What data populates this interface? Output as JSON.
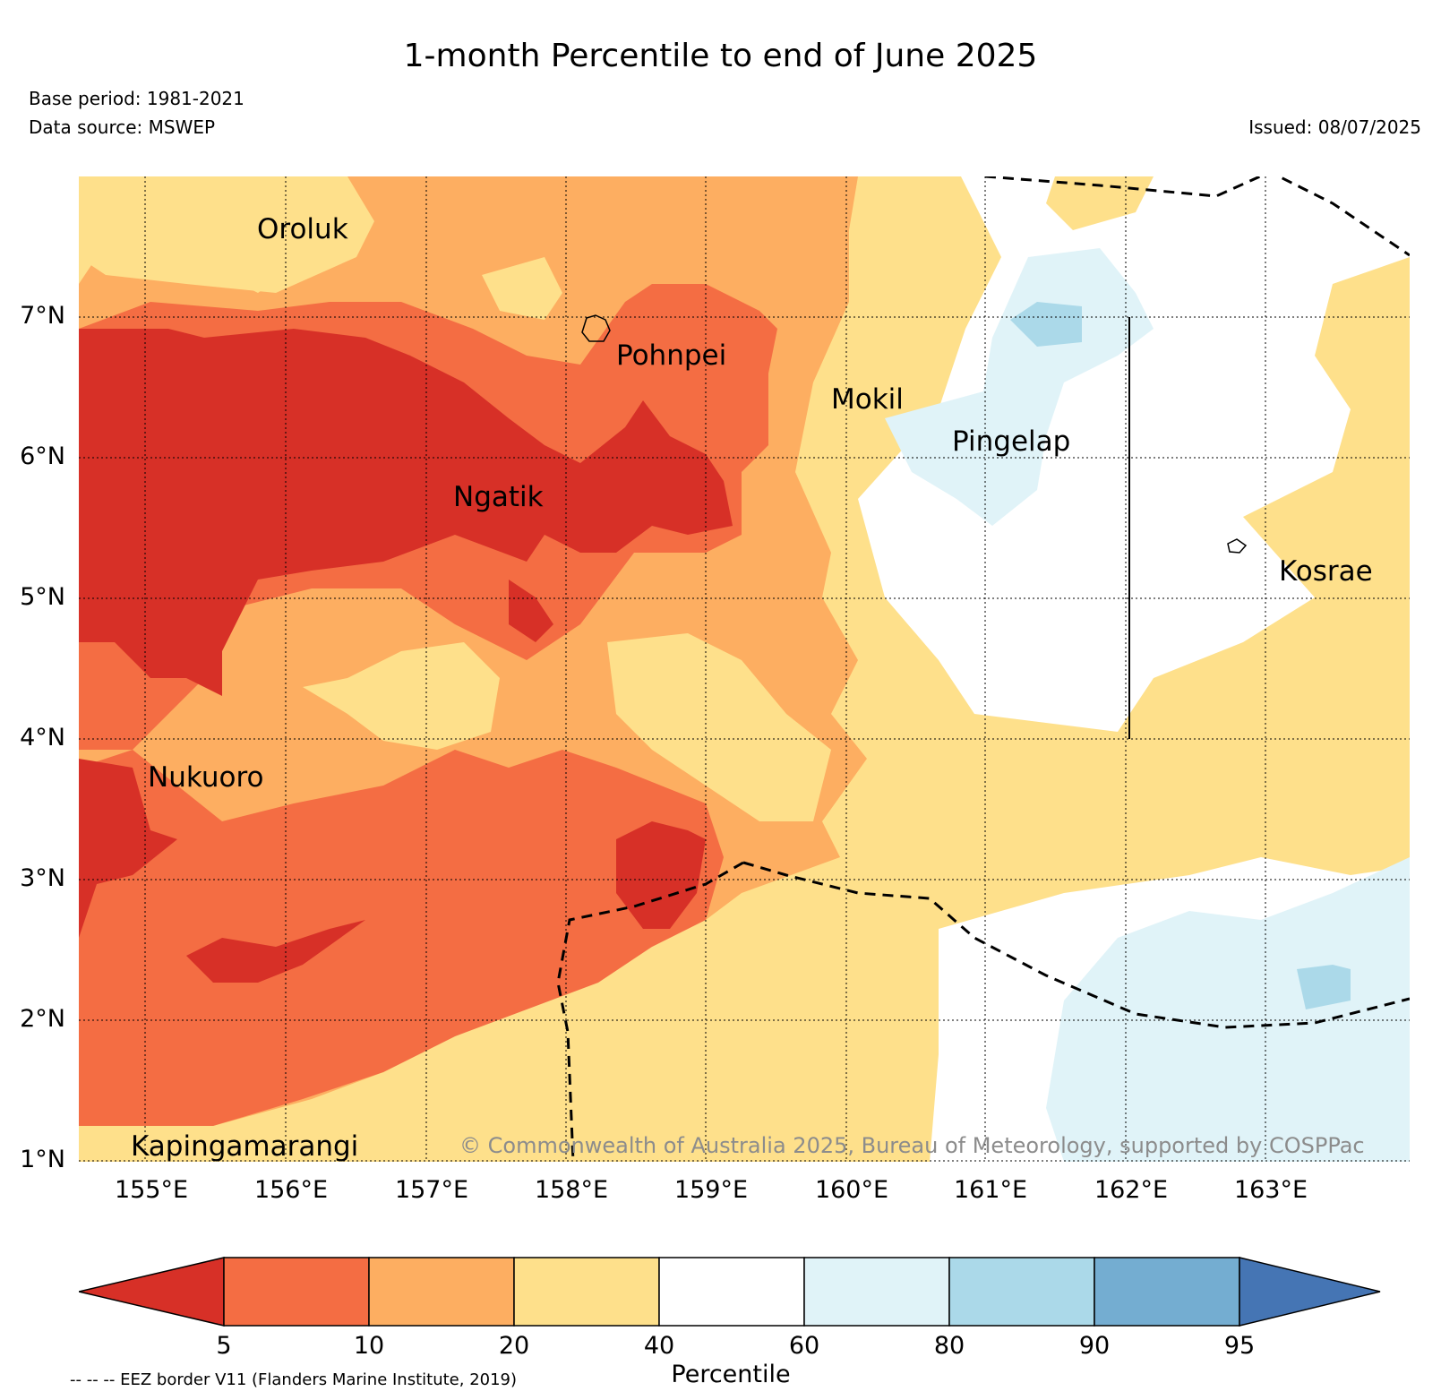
{
  "header": {
    "title": "1-month Percentile to end of June 2025",
    "base_period": "Base period: 1981-2021",
    "data_source": "Data source: MSWEP",
    "issued": "Issued: 08/07/2025"
  },
  "axes": {
    "lon_labels": [
      "155°E",
      "156°E",
      "157°E",
      "158°E",
      "159°E",
      "160°E",
      "161°E",
      "162°E",
      "163°E"
    ],
    "lat_labels": [
      "7°N",
      "6°N",
      "5°N",
      "4°N",
      "3°N",
      "2°N",
      "1°N"
    ],
    "lon_range": [
      154.5,
      164.0
    ],
    "lat_range": [
      1.0,
      8.0
    ],
    "grid": "dotted"
  },
  "places": [
    {
      "name": "Oroluk",
      "lon": 155.8,
      "lat": 7.6
    },
    {
      "name": "Pohnpei",
      "lon": 158.3,
      "lat": 6.9
    },
    {
      "name": "Mokil",
      "lon": 159.8,
      "lat": 6.7
    },
    {
      "name": "Pingelap",
      "lon": 160.7,
      "lat": 6.2
    },
    {
      "name": "Ngatik",
      "lon": 157.1,
      "lat": 5.8
    },
    {
      "name": "Kosrae",
      "lon": 163.0,
      "lat": 5.3
    },
    {
      "name": "Nukuoro",
      "lon": 154.9,
      "lat": 3.9
    },
    {
      "name": "Kapingamarangi",
      "lon": 154.8,
      "lat": 1.1
    }
  ],
  "copyright": "© Commonwealth of Australia 2025, Bureau of Meteorology, supported by COSPPac",
  "colorbar": {
    "title": "Percentile",
    "boundaries": [
      5,
      10,
      20,
      40,
      60,
      80,
      90,
      95
    ],
    "colors": [
      "#d73027",
      "#f46d43",
      "#fdae61",
      "#fee08b",
      "#ffffff",
      "#e0f3f8",
      "#abd9e9",
      "#74add1",
      "#4575b4"
    ]
  },
  "eez_note": "-- -- -- EEZ border V11 (Flanders Marine Institute, 2019)"
}
